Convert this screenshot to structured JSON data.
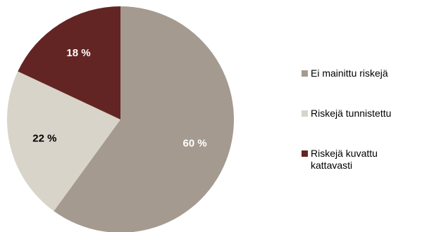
{
  "chart_data": {
    "type": "pie",
    "start_angle_deg": 0,
    "direction": "clockwise",
    "slices": [
      {
        "label": "Ei mainittu riskejä",
        "value": 60,
        "value_label": "60 %",
        "color": "#a59a8f",
        "label_color": "#ffffff"
      },
      {
        "label": "Riskejä tunnistettu",
        "value": 22,
        "value_label": "22 %",
        "color": "#d9d4c9",
        "label_color": "#000000"
      },
      {
        "label": "Riskejä kuvattu\nkattavasti",
        "value": 18,
        "value_label": "18 %",
        "color": "#632523",
        "label_color": "#ffffff"
      }
    ],
    "legend": {
      "placement": "right",
      "items": [
        "Ei mainittu riskejä",
        "Riskejä tunnistettu",
        "Riskejä kuvattu\nkattavasti"
      ]
    }
  }
}
